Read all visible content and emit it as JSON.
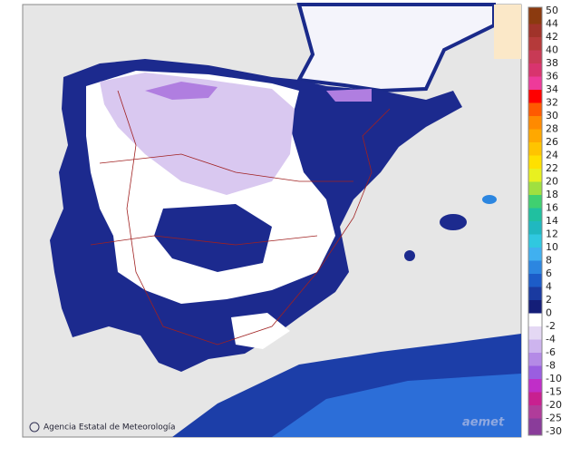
{
  "legend": {
    "items": [
      {
        "label": 50,
        "color": "#8b3a0f"
      },
      {
        "label": 44,
        "color": "#a0332a"
      },
      {
        "label": 42,
        "color": "#b53a3a"
      },
      {
        "label": 40,
        "color": "#c83a55"
      },
      {
        "label": 38,
        "color": "#d8346e"
      },
      {
        "label": 36,
        "color": "#ee3a9a"
      },
      {
        "label": 34,
        "color": "#ff0000"
      },
      {
        "label": 32,
        "color": "#ff5a00"
      },
      {
        "label": 30,
        "color": "#ff8a00"
      },
      {
        "label": 28,
        "color": "#ffa800"
      },
      {
        "label": 26,
        "color": "#ffc400"
      },
      {
        "label": 24,
        "color": "#ffe000"
      },
      {
        "label": 22,
        "color": "#e8f020"
      },
      {
        "label": 20,
        "color": "#a0e040"
      },
      {
        "label": 18,
        "color": "#40d070"
      },
      {
        "label": 16,
        "color": "#20c0a0"
      },
      {
        "label": 14,
        "color": "#20b8c0"
      },
      {
        "label": 12,
        "color": "#30c8e0"
      },
      {
        "label": 10,
        "color": "#40b0f0"
      },
      {
        "label": 8,
        "color": "#2c86e0"
      },
      {
        "label": 6,
        "color": "#1c5cc8"
      },
      {
        "label": 4,
        "color": "#1a3aa0"
      },
      {
        "label": 2,
        "color": "#141e78"
      },
      {
        "label": 0,
        "color": "#ffffff"
      },
      {
        "label": -2,
        "color": "#e4d8f4"
      },
      {
        "label": -4,
        "color": "#cdb4ee"
      },
      {
        "label": -6,
        "color": "#b48ae6"
      },
      {
        "label": -8,
        "color": "#9a5ee0"
      },
      {
        "label": -10,
        "color": "#c02ec8"
      },
      {
        "label": -15,
        "color": "#c82090"
      },
      {
        "label": -20,
        "color": "#b03c9a"
      },
      {
        "label": -25,
        "color": "#8a3c9a"
      },
      {
        "label": -30,
        "color": "#8a3c9a"
      }
    ]
  },
  "credit": "Agencia Estatal de Meteorología",
  "logo": "aemet"
}
